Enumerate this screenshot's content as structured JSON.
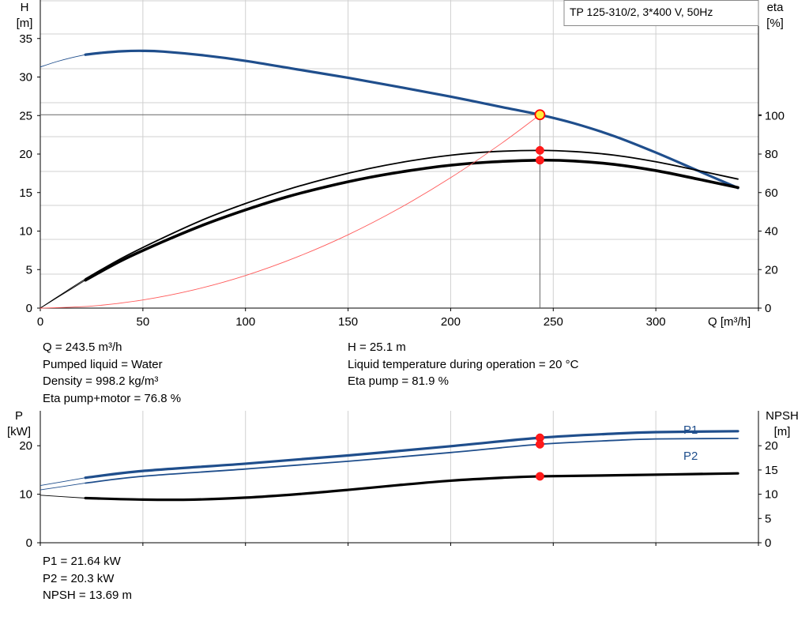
{
  "chart_data": [
    {
      "type": "line",
      "title": "TP 125-310/2, 3*400 V, 50Hz",
      "xlabel": "Q [m³/h]",
      "ylabel_left": [
        "H",
        "[m]"
      ],
      "ylabel_right": [
        "eta",
        "[%]"
      ],
      "xlim": [
        0,
        350
      ],
      "xticks": [
        0,
        50,
        100,
        150,
        200,
        250,
        300
      ],
      "ylim_left": [
        0,
        40
      ],
      "yticks_left": [
        0,
        5,
        10,
        15,
        20,
        25,
        30,
        35
      ],
      "ylim_right": [
        0,
        160
      ],
      "yticks_right": [
        0,
        20,
        40,
        60,
        80,
        100
      ],
      "grid": true,
      "operating_point": {
        "Q": 243.5,
        "H": 25.1,
        "eta_pump": 81.9,
        "eta_pump_motor": 76.8
      },
      "series": [
        {
          "key": "H",
          "color": "#1f4e8c",
          "axis": "left",
          "x": [
            22,
            30,
            40,
            50,
            60,
            80,
            100,
            125,
            150,
            175,
            200,
            225,
            243.5,
            260,
            280,
            300,
            320,
            340
          ],
          "y": [
            32.9,
            33.15,
            33.35,
            33.4,
            33.3,
            32.8,
            32.1,
            31.0,
            29.9,
            28.7,
            27.45,
            26.1,
            25.1,
            24.0,
            22.3,
            20.2,
            17.9,
            15.6
          ],
          "ext_x": [
            0,
            8,
            15,
            22
          ],
          "ext_y": [
            31.3,
            32.0,
            32.5,
            32.9
          ]
        },
        {
          "key": "eta_pump",
          "color": "#000000",
          "axis": "right",
          "x": [
            22,
            40,
            60,
            80,
            100,
            120,
            140,
            160,
            180,
            200,
            220,
            243.5,
            260,
            280,
            300,
            320,
            340
          ],
          "y": [
            15.2,
            26.1,
            36.6,
            46.2,
            54.3,
            61.4,
            67.4,
            72.4,
            76.4,
            79.4,
            81.2,
            81.9,
            81.3,
            79.4,
            76.0,
            71.6,
            67.0
          ],
          "ext_x": [
            0,
            10,
            22
          ],
          "ext_y": [
            0,
            7.0,
            15.2
          ]
        },
        {
          "key": "eta_pump_motor",
          "color": "#000000",
          "axis": "right",
          "x": [
            22,
            40,
            60,
            80,
            100,
            120,
            140,
            160,
            180,
            200,
            220,
            243.5,
            260,
            280,
            300,
            320,
            340
          ],
          "y": [
            14.5,
            24.9,
            34.6,
            43.4,
            51.0,
            57.7,
            63.2,
            67.8,
            71.4,
            74.2,
            75.9,
            76.8,
            76.4,
            74.6,
            71.4,
            67.1,
            62.6
          ],
          "ext_x": [
            0,
            10,
            22
          ],
          "ext_y": [
            0,
            6.6,
            14.5
          ]
        },
        {
          "key": "system_curve",
          "color": "#ff5a5a",
          "axis": "left",
          "x": [
            0,
            25,
            50,
            75,
            100,
            125,
            150,
            175,
            200,
            225,
            243.5
          ],
          "y": [
            0,
            0.26,
            1.06,
            2.38,
            4.23,
            6.62,
            9.52,
            12.96,
            16.93,
            21.43,
            25.1
          ]
        }
      ],
      "markers": [
        {
          "series": "H",
          "x": 243.5,
          "y": 25.1,
          "style": "yellow"
        },
        {
          "series": "eta_pump",
          "x": 243.5,
          "y": 81.9,
          "style": "red"
        },
        {
          "series": "eta_pump_motor",
          "x": 243.5,
          "y": 76.8,
          "style": "red"
        }
      ]
    },
    {
      "type": "line",
      "xlabel": "",
      "ylabel_left": [
        "P",
        "[kW]"
      ],
      "ylabel_right": [
        "NPSH",
        "[m]"
      ],
      "xlim": [
        0,
        350
      ],
      "ylim_left": [
        0,
        27.2
      ],
      "yticks_left": [
        0,
        10,
        20
      ],
      "ylim_right": [
        0,
        27.2
      ],
      "yticks_right": [
        0,
        5,
        10,
        15,
        20
      ],
      "grid": true,
      "series": [
        {
          "name": "P1",
          "key": "P1",
          "color": "#1f4e8c",
          "axis": "left",
          "x": [
            22,
            50,
            100,
            150,
            200,
            243.5,
            280,
            300,
            340
          ],
          "y": [
            13.4,
            14.8,
            16.3,
            18.0,
            19.9,
            21.64,
            22.5,
            22.8,
            23.0
          ],
          "ext_x": [
            0,
            22
          ],
          "ext_y": [
            11.8,
            13.4
          ]
        },
        {
          "name": "P2",
          "key": "P2",
          "color": "#1f4e8c",
          "axis": "left",
          "x": [
            22,
            50,
            100,
            150,
            200,
            243.5,
            280,
            300,
            340
          ],
          "y": [
            12.3,
            13.7,
            15.2,
            16.8,
            18.6,
            20.3,
            21.1,
            21.4,
            21.5
          ],
          "ext_x": [
            0,
            22
          ],
          "ext_y": [
            10.9,
            12.3
          ]
        },
        {
          "key": "NPSH",
          "color": "#000000",
          "axis": "right",
          "x": [
            22,
            50,
            75,
            100,
            125,
            150,
            175,
            200,
            225,
            243.5,
            280,
            340
          ],
          "y": [
            9.2,
            8.9,
            8.9,
            9.3,
            10.0,
            10.9,
            11.9,
            12.8,
            13.4,
            13.69,
            13.9,
            14.3
          ],
          "ext_x": [
            0,
            22
          ],
          "ext_y": [
            9.8,
            9.2
          ]
        }
      ],
      "markers": [
        {
          "series": "P1",
          "x": 243.5,
          "y": 21.64,
          "style": "red"
        },
        {
          "series": "P2",
          "x": 243.5,
          "y": 20.3,
          "style": "red"
        },
        {
          "series": "NPSH",
          "x": 243.5,
          "y": 13.69,
          "style": "red"
        }
      ]
    }
  ],
  "info_top": {
    "left": [
      "Q = 243.5 m³/h",
      "Pumped liquid = Water",
      "Density = 998.2 kg/m³",
      "Eta pump+motor = 76.8 %"
    ],
    "right": [
      "H = 25.1 m",
      "Liquid temperature during operation = 20 °C",
      "Eta pump = 81.9 %"
    ]
  },
  "info_bottom": [
    "P1 = 21.64 kW",
    "P2 = 20.3 kW",
    "NPSH = 13.69 m"
  ]
}
